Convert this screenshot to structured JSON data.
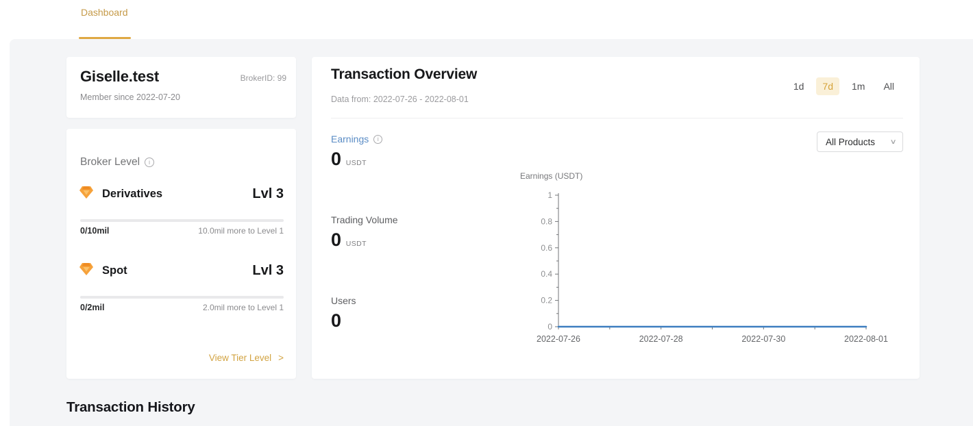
{
  "header": {
    "tabs": [
      {
        "label": "Dashboard",
        "active": true
      }
    ]
  },
  "profile_card": {
    "name": "Giselle.test",
    "broker_id": "BrokerID: 99",
    "member_since": "Member since 2022-07-20"
  },
  "level_card": {
    "title": "Broker Level",
    "tiers": [
      {
        "name": "Derivatives",
        "level": "Lvl 3",
        "progress_label": "0/10mil",
        "remaining_label": "10.0mil more to Level 1",
        "progress_pct": 0
      },
      {
        "name": "Spot",
        "level": "Lvl 3",
        "progress_label": "0/2mil",
        "remaining_label": "2.0mil more to Level 1",
        "progress_pct": 0
      }
    ],
    "view_tier_link": "View Tier Level"
  },
  "overview_card": {
    "title": "Transaction Overview",
    "subtitle": "Data from: 2022-07-26 - 2022-08-01",
    "range_tabs": [
      {
        "label": "1d",
        "active": false
      },
      {
        "label": "7d",
        "active": true
      },
      {
        "label": "1m",
        "active": false
      },
      {
        "label": "All",
        "active": false
      }
    ],
    "products_dropdown_value": "All Products",
    "metrics": [
      {
        "label": "Earnings",
        "value": "0",
        "unit": "USDT"
      },
      {
        "label": "Trading Volume",
        "value": "0",
        "unit": "USDT"
      },
      {
        "label": "Users",
        "value": "0",
        "unit": ""
      }
    ]
  },
  "history_section": {
    "title": "Transaction History"
  },
  "icons": {
    "info": "i",
    "chevron_down": "∨",
    "chevron_right": ">"
  },
  "colors": {
    "accent_gold": "#d5a33a",
    "accent_gold_bg": "#faf0d8",
    "tab_underline": "#dfa843",
    "link_blue": "#5a8cc5",
    "chart_line": "#3d7ec0",
    "page_bg": "#f4f5f7"
  },
  "chart_data": {
    "type": "line",
    "title": "Earnings (USDT)",
    "x": [
      "2022-07-26",
      "2022-07-27",
      "2022-07-28",
      "2022-07-29",
      "2022-07-30",
      "2022-07-31",
      "2022-08-01"
    ],
    "series": [
      {
        "name": "Earnings",
        "values": [
          0,
          0,
          0,
          0,
          0,
          0,
          0
        ]
      }
    ],
    "xlabel": "",
    "ylabel": "Earnings (USDT)",
    "ylim": [
      0,
      1
    ],
    "yticks": [
      0,
      0.2,
      0.4,
      0.6,
      0.8,
      1
    ],
    "x_tick_labels_shown": [
      "2022-07-26",
      "2022-07-28",
      "2022-07-30",
      "2022-08-01"
    ],
    "grid": false,
    "legend_position": "none",
    "line_color": "#3d7ec0"
  }
}
